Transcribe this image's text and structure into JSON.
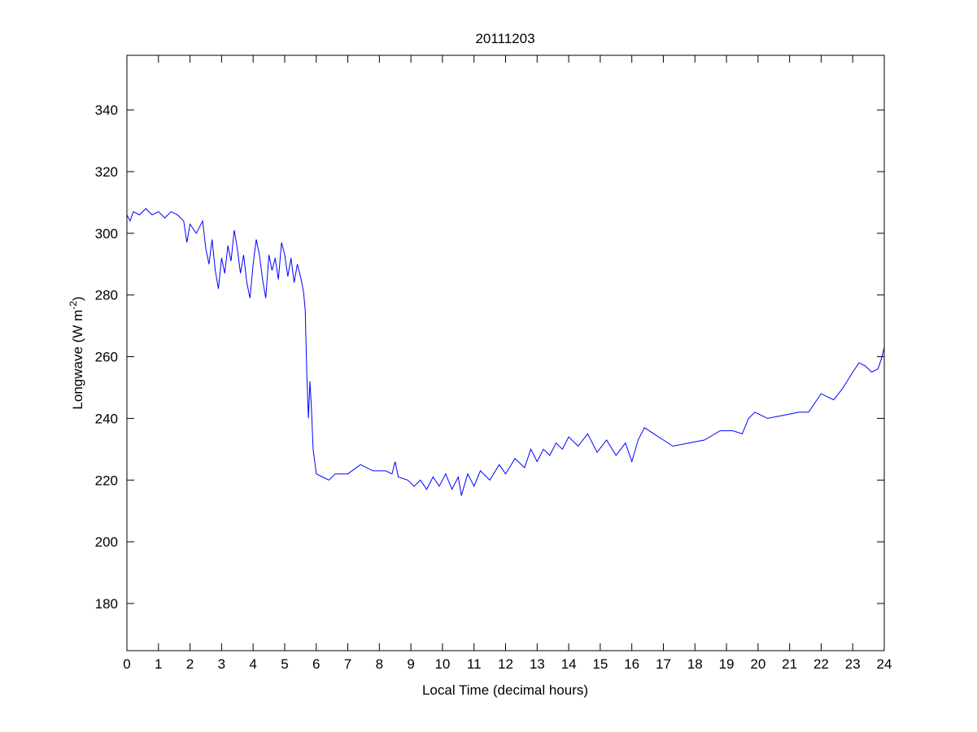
{
  "chart_data": {
    "type": "line",
    "title": "20111203",
    "xlabel": "Local Time (decimal hours)",
    "ylabel": "Longwave (W m",
    "ylabel_sup": "-2",
    "ylabel_close": ")",
    "xlim": [
      0,
      24
    ],
    "ylim": [
      164.7,
      357.7
    ],
    "xticks": [
      0,
      1,
      2,
      3,
      4,
      5,
      6,
      7,
      8,
      9,
      10,
      11,
      12,
      13,
      14,
      15,
      16,
      17,
      18,
      19,
      20,
      21,
      22,
      23,
      24
    ],
    "yticks": [
      180,
      200,
      220,
      240,
      260,
      280,
      300,
      320,
      340
    ],
    "grid": false,
    "line_color": "#0000ff",
    "series": [
      {
        "name": "Longwave",
        "x": [
          0,
          0.1,
          0.2,
          0.4,
          0.6,
          0.8,
          1.0,
          1.2,
          1.4,
          1.6,
          1.8,
          1.9,
          2.0,
          2.2,
          2.4,
          2.5,
          2.6,
          2.7,
          2.8,
          2.9,
          3.0,
          3.1,
          3.2,
          3.3,
          3.4,
          3.5,
          3.6,
          3.7,
          3.8,
          3.9,
          4.0,
          4.1,
          4.2,
          4.3,
          4.4,
          4.5,
          4.6,
          4.7,
          4.8,
          4.9,
          5.0,
          5.1,
          5.2,
          5.3,
          5.4,
          5.5,
          5.6,
          5.65,
          5.7,
          5.75,
          5.8,
          5.85,
          5.9,
          6.0,
          6.2,
          6.4,
          6.6,
          7.0,
          7.4,
          7.8,
          8.2,
          8.4,
          8.5,
          8.6,
          8.9,
          9.1,
          9.3,
          9.5,
          9.7,
          9.9,
          10.1,
          10.3,
          10.5,
          10.6,
          10.8,
          11.0,
          11.2,
          11.5,
          11.8,
          12.0,
          12.3,
          12.6,
          12.8,
          13.0,
          13.2,
          13.4,
          13.6,
          13.8,
          14.0,
          14.3,
          14.6,
          14.9,
          15.2,
          15.5,
          15.8,
          16.0,
          16.2,
          16.4,
          16.7,
          17.0,
          17.3,
          17.8,
          18.3,
          18.8,
          19.2,
          19.5,
          19.7,
          19.9,
          20.3,
          20.8,
          21.3,
          21.6,
          21.8,
          22.0,
          22.2,
          22.4,
          22.7,
          23.0,
          23.2,
          23.4,
          23.6,
          23.8,
          23.9,
          24.0
        ],
        "y": [
          306,
          304,
          307,
          306,
          308,
          306,
          307,
          305,
          307,
          306,
          304,
          297,
          303,
          300,
          304,
          295,
          290,
          298,
          288,
          282,
          292,
          287,
          296,
          291,
          301,
          295,
          287,
          293,
          284,
          279,
          290,
          298,
          293,
          285,
          279,
          293,
          288,
          292,
          285,
          297,
          293,
          286,
          292,
          284,
          290,
          286,
          281,
          275,
          255,
          240,
          252,
          243,
          230,
          222,
          221,
          220,
          222,
          222,
          225,
          223,
          223,
          222,
          226,
          221,
          220,
          218,
          220,
          217,
          221,
          218,
          222,
          217,
          221,
          215,
          222,
          218,
          223,
          220,
          225,
          222,
          227,
          224,
          230,
          226,
          230,
          228,
          232,
          230,
          234,
          231,
          235,
          229,
          233,
          228,
          232,
          226,
          233,
          237,
          235,
          233,
          231,
          232,
          233,
          236,
          236,
          235,
          240,
          242,
          240,
          241,
          242,
          242,
          245,
          248,
          247,
          246,
          250,
          255,
          258,
          257,
          255,
          256,
          259,
          263
        ]
      }
    ]
  }
}
